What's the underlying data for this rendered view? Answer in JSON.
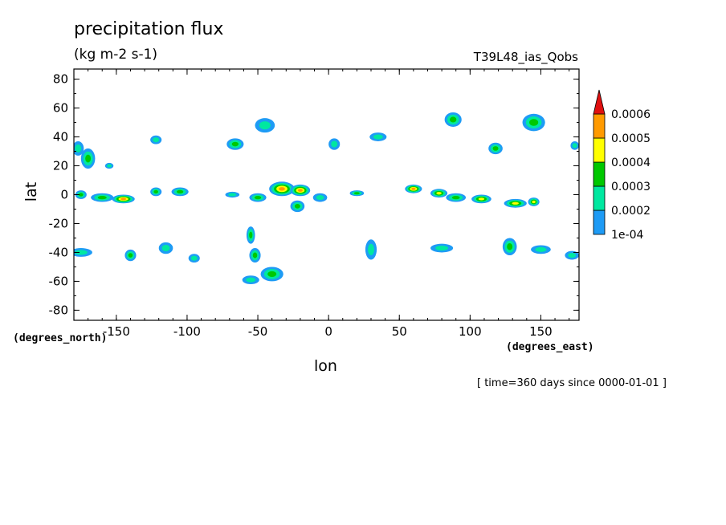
{
  "chart_data": {
    "type": "heatmap",
    "title": "precipitation flux",
    "units": "(kg m-2 s-1)",
    "run_label": "T39L48_ias_Qobs",
    "xlabel": "lon",
    "ylabel": "lat",
    "x_units_label": "(degrees_east)",
    "y_units_label": "(degrees_north)",
    "time_label": "[ time=360 days since 0000-01-01 ]",
    "xlim": [
      -180,
      177
    ],
    "ylim": [
      -87,
      87
    ],
    "x_ticks": [
      {
        "value": -150,
        "label": "-150"
      },
      {
        "value": -100,
        "label": "-100"
      },
      {
        "value": -50,
        "label": "-50"
      },
      {
        "value": 0,
        "label": "0"
      },
      {
        "value": 50,
        "label": "50"
      },
      {
        "value": 100,
        "label": "100"
      },
      {
        "value": 150,
        "label": "150"
      }
    ],
    "y_ticks": [
      {
        "value": 80,
        "label": "80"
      },
      {
        "value": 60,
        "label": "60"
      },
      {
        "value": 40,
        "label": "40"
      },
      {
        "value": 20,
        "label": "20"
      },
      {
        "value": 0,
        "label": "0"
      },
      {
        "value": -20,
        "label": "-20"
      },
      {
        "value": -40,
        "label": "-40"
      },
      {
        "value": -60,
        "label": "-60"
      },
      {
        "value": -80,
        "label": "-80"
      }
    ],
    "levels": [
      "1e-04",
      "0.0002",
      "0.0003",
      "0.0004",
      "0.0005",
      "0.0006"
    ],
    "level_colors": [
      "#1e9bf5",
      "#00e8a0",
      "#00c800",
      "#ffff00",
      "#ff9a00",
      "#e01010"
    ],
    "features": [
      {
        "lon": -177,
        "lat": 32,
        "rx": 4,
        "ry": 5,
        "level": 1
      },
      {
        "lon": -170,
        "lat": 25,
        "rx": 5,
        "ry": 7,
        "level": 2
      },
      {
        "lon": -155,
        "lat": 20,
        "rx": 3,
        "ry": 2,
        "level": 1
      },
      {
        "lon": -122,
        "lat": 38,
        "rx": 4,
        "ry": 3,
        "level": 1
      },
      {
        "lon": -66,
        "lat": 35,
        "rx": 6,
        "ry": 4,
        "level": 2
      },
      {
        "lon": -45,
        "lat": 48,
        "rx": 7,
        "ry": 5,
        "level": 1
      },
      {
        "lon": 4,
        "lat": 35,
        "rx": 4,
        "ry": 4,
        "level": 1
      },
      {
        "lon": 35,
        "lat": 40,
        "rx": 6,
        "ry": 3,
        "level": 1
      },
      {
        "lon": 88,
        "lat": 52,
        "rx": 6,
        "ry": 5,
        "level": 2
      },
      {
        "lon": 118,
        "lat": 32,
        "rx": 5,
        "ry": 4,
        "level": 2
      },
      {
        "lon": 145,
        "lat": 50,
        "rx": 8,
        "ry": 6,
        "level": 2
      },
      {
        "lon": 174,
        "lat": 34,
        "rx": 3,
        "ry": 3,
        "level": 1
      },
      {
        "lon": -175,
        "lat": 0,
        "rx": 4,
        "ry": 3,
        "level": 2
      },
      {
        "lon": -160,
        "lat": -2,
        "rx": 8,
        "ry": 3,
        "level": 2
      },
      {
        "lon": -145,
        "lat": -3,
        "rx": 8,
        "ry": 3,
        "level": 4
      },
      {
        "lon": -122,
        "lat": 2,
        "rx": 4,
        "ry": 3,
        "level": 2
      },
      {
        "lon": -105,
        "lat": 2,
        "rx": 6,
        "ry": 3,
        "level": 2
      },
      {
        "lon": -68,
        "lat": 0,
        "rx": 5,
        "ry": 2,
        "level": 1
      },
      {
        "lon": -50,
        "lat": -2,
        "rx": 6,
        "ry": 3,
        "level": 2
      },
      {
        "lon": -33,
        "lat": 4,
        "rx": 9,
        "ry": 5,
        "level": 4
      },
      {
        "lon": -20,
        "lat": 3,
        "rx": 7,
        "ry": 4,
        "level": 4
      },
      {
        "lon": -22,
        "lat": -8,
        "rx": 5,
        "ry": 4,
        "level": 2
      },
      {
        "lon": -6,
        "lat": -2,
        "rx": 5,
        "ry": 3,
        "level": 1
      },
      {
        "lon": 20,
        "lat": 1,
        "rx": 5,
        "ry": 2,
        "level": 2
      },
      {
        "lon": 60,
        "lat": 4,
        "rx": 6,
        "ry": 3,
        "level": 4
      },
      {
        "lon": 78,
        "lat": 1,
        "rx": 6,
        "ry": 3,
        "level": 3
      },
      {
        "lon": 90,
        "lat": -2,
        "rx": 7,
        "ry": 3,
        "level": 2
      },
      {
        "lon": 108,
        "lat": -3,
        "rx": 7,
        "ry": 3,
        "level": 3
      },
      {
        "lon": 132,
        "lat": -6,
        "rx": 8,
        "ry": 3,
        "level": 3
      },
      {
        "lon": 145,
        "lat": -5,
        "rx": 4,
        "ry": 3,
        "level": 3
      },
      {
        "lon": -175,
        "lat": -40,
        "rx": 8,
        "ry": 3,
        "level": 1
      },
      {
        "lon": -140,
        "lat": -42,
        "rx": 4,
        "ry": 4,
        "level": 2
      },
      {
        "lon": -115,
        "lat": -37,
        "rx": 5,
        "ry": 4,
        "level": 1
      },
      {
        "lon": -95,
        "lat": -44,
        "rx": 4,
        "ry": 3,
        "level": 1
      },
      {
        "lon": -55,
        "lat": -28,
        "rx": 3,
        "ry": 6,
        "level": 2
      },
      {
        "lon": -52,
        "lat": -42,
        "rx": 4,
        "ry": 5,
        "level": 2
      },
      {
        "lon": -40,
        "lat": -55,
        "rx": 8,
        "ry": 5,
        "level": 2
      },
      {
        "lon": -55,
        "lat": -59,
        "rx": 6,
        "ry": 3,
        "level": 1
      },
      {
        "lon": 30,
        "lat": -38,
        "rx": 4,
        "ry": 7,
        "level": 1
      },
      {
        "lon": 80,
        "lat": -37,
        "rx": 8,
        "ry": 3,
        "level": 1
      },
      {
        "lon": 128,
        "lat": -36,
        "rx": 5,
        "ry": 6,
        "level": 2
      },
      {
        "lon": 150,
        "lat": -38,
        "rx": 7,
        "ry": 3,
        "level": 1
      },
      {
        "lon": 172,
        "lat": -42,
        "rx": 5,
        "ry": 3,
        "level": 1
      }
    ]
  }
}
